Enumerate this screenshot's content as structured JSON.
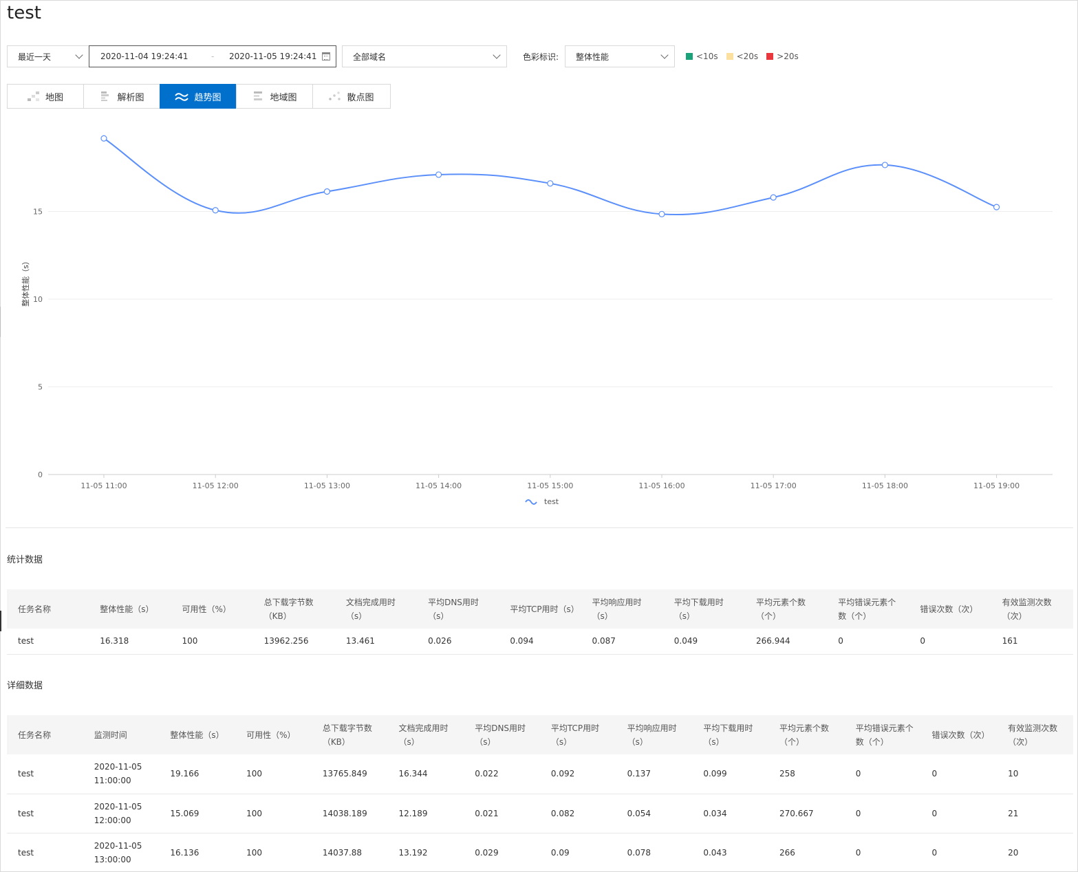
{
  "page": {
    "title": "test"
  },
  "filters": {
    "range_label": "最近一天",
    "date_start": "2020-11-04 19:24:41",
    "date_sep": "-",
    "date_end": "2020-11-05 19:24:41",
    "domain_label": "全部域名",
    "color_label": "色彩标识:",
    "metric_label": "整体性能",
    "legend": [
      {
        "label": "<10s",
        "color": "#1aa37a"
      },
      {
        "label": "<20s",
        "color": "#fbe0a0"
      },
      {
        "label": ">20s",
        "color": "#e8383d"
      }
    ]
  },
  "tabs": [
    {
      "label": "地图",
      "icon": "map-icon"
    },
    {
      "label": "解析图",
      "icon": "parse-chart-icon"
    },
    {
      "label": "趋势图",
      "icon": "trend-icon",
      "active": true
    },
    {
      "label": "地域图",
      "icon": "region-chart-icon"
    },
    {
      "label": "散点图",
      "icon": "scatter-icon"
    }
  ],
  "chart_data": {
    "type": "line",
    "x": [
      "11-05 11:00",
      "11-05 12:00",
      "11-05 13:00",
      "11-05 14:00",
      "11-05 15:00",
      "11-05 16:00",
      "11-05 17:00",
      "11-05 18:00",
      "11-05 19:00"
    ],
    "series": [
      {
        "name": "test",
        "values": [
          19.166,
          15.069,
          16.136,
          17.1,
          16.6,
          14.85,
          15.8,
          17.65,
          15.25
        ],
        "color": "#5b8ff9"
      }
    ],
    "yticks": [
      0,
      5,
      10,
      15
    ],
    "ylim": [
      0,
      20
    ],
    "ylabel": "整体性能（s）",
    "grid": true,
    "legend_position": "bottom-center"
  },
  "stats": {
    "title": "统计数据",
    "headers": [
      "任务名称",
      "整体性能（s）",
      "可用性（%）",
      "总下载字节数（KB）",
      "文档完成用时（s）",
      "平均DNS用时（s）",
      "平均TCP用时（s）",
      "平均响应用时（s）",
      "平均下载用时（s）",
      "平均元素个数（个）",
      "平均错误元素个数（个）",
      "错误次数（次）",
      "有效监测次数（次）"
    ],
    "rows": [
      [
        "test",
        "16.318",
        "100",
        "13962.256",
        "13.461",
        "0.026",
        "0.094",
        "0.087",
        "0.049",
        "266.944",
        "0",
        "0",
        "161"
      ]
    ]
  },
  "details": {
    "title": "详细数据",
    "headers": [
      "任务名称",
      "监测时间",
      "整体性能（s）",
      "可用性（%）",
      "总下载字节数（KB）",
      "文档完成用时（s）",
      "平均DNS用时（s）",
      "平均TCP用时（s）",
      "平均响应用时（s）",
      "平均下载用时（s）",
      "平均元素个数（个）",
      "平均错误元素个数（个）",
      "错误次数（次）",
      "有效监测次数（次）"
    ],
    "rows": [
      [
        "test",
        "2020-11-05 11:00:00",
        "19.166",
        "100",
        "13765.849",
        "16.344",
        "0.022",
        "0.092",
        "0.137",
        "0.099",
        "258",
        "0",
        "0",
        "10"
      ],
      [
        "test",
        "2020-11-05 12:00:00",
        "15.069",
        "100",
        "14038.189",
        "12.189",
        "0.021",
        "0.082",
        "0.054",
        "0.034",
        "270.667",
        "0",
        "0",
        "21"
      ],
      [
        "test",
        "2020-11-05 13:00:00",
        "16.136",
        "100",
        "14037.88",
        "13.192",
        "0.029",
        "0.09",
        "0.078",
        "0.043",
        "266",
        "0",
        "0",
        "20"
      ]
    ]
  }
}
